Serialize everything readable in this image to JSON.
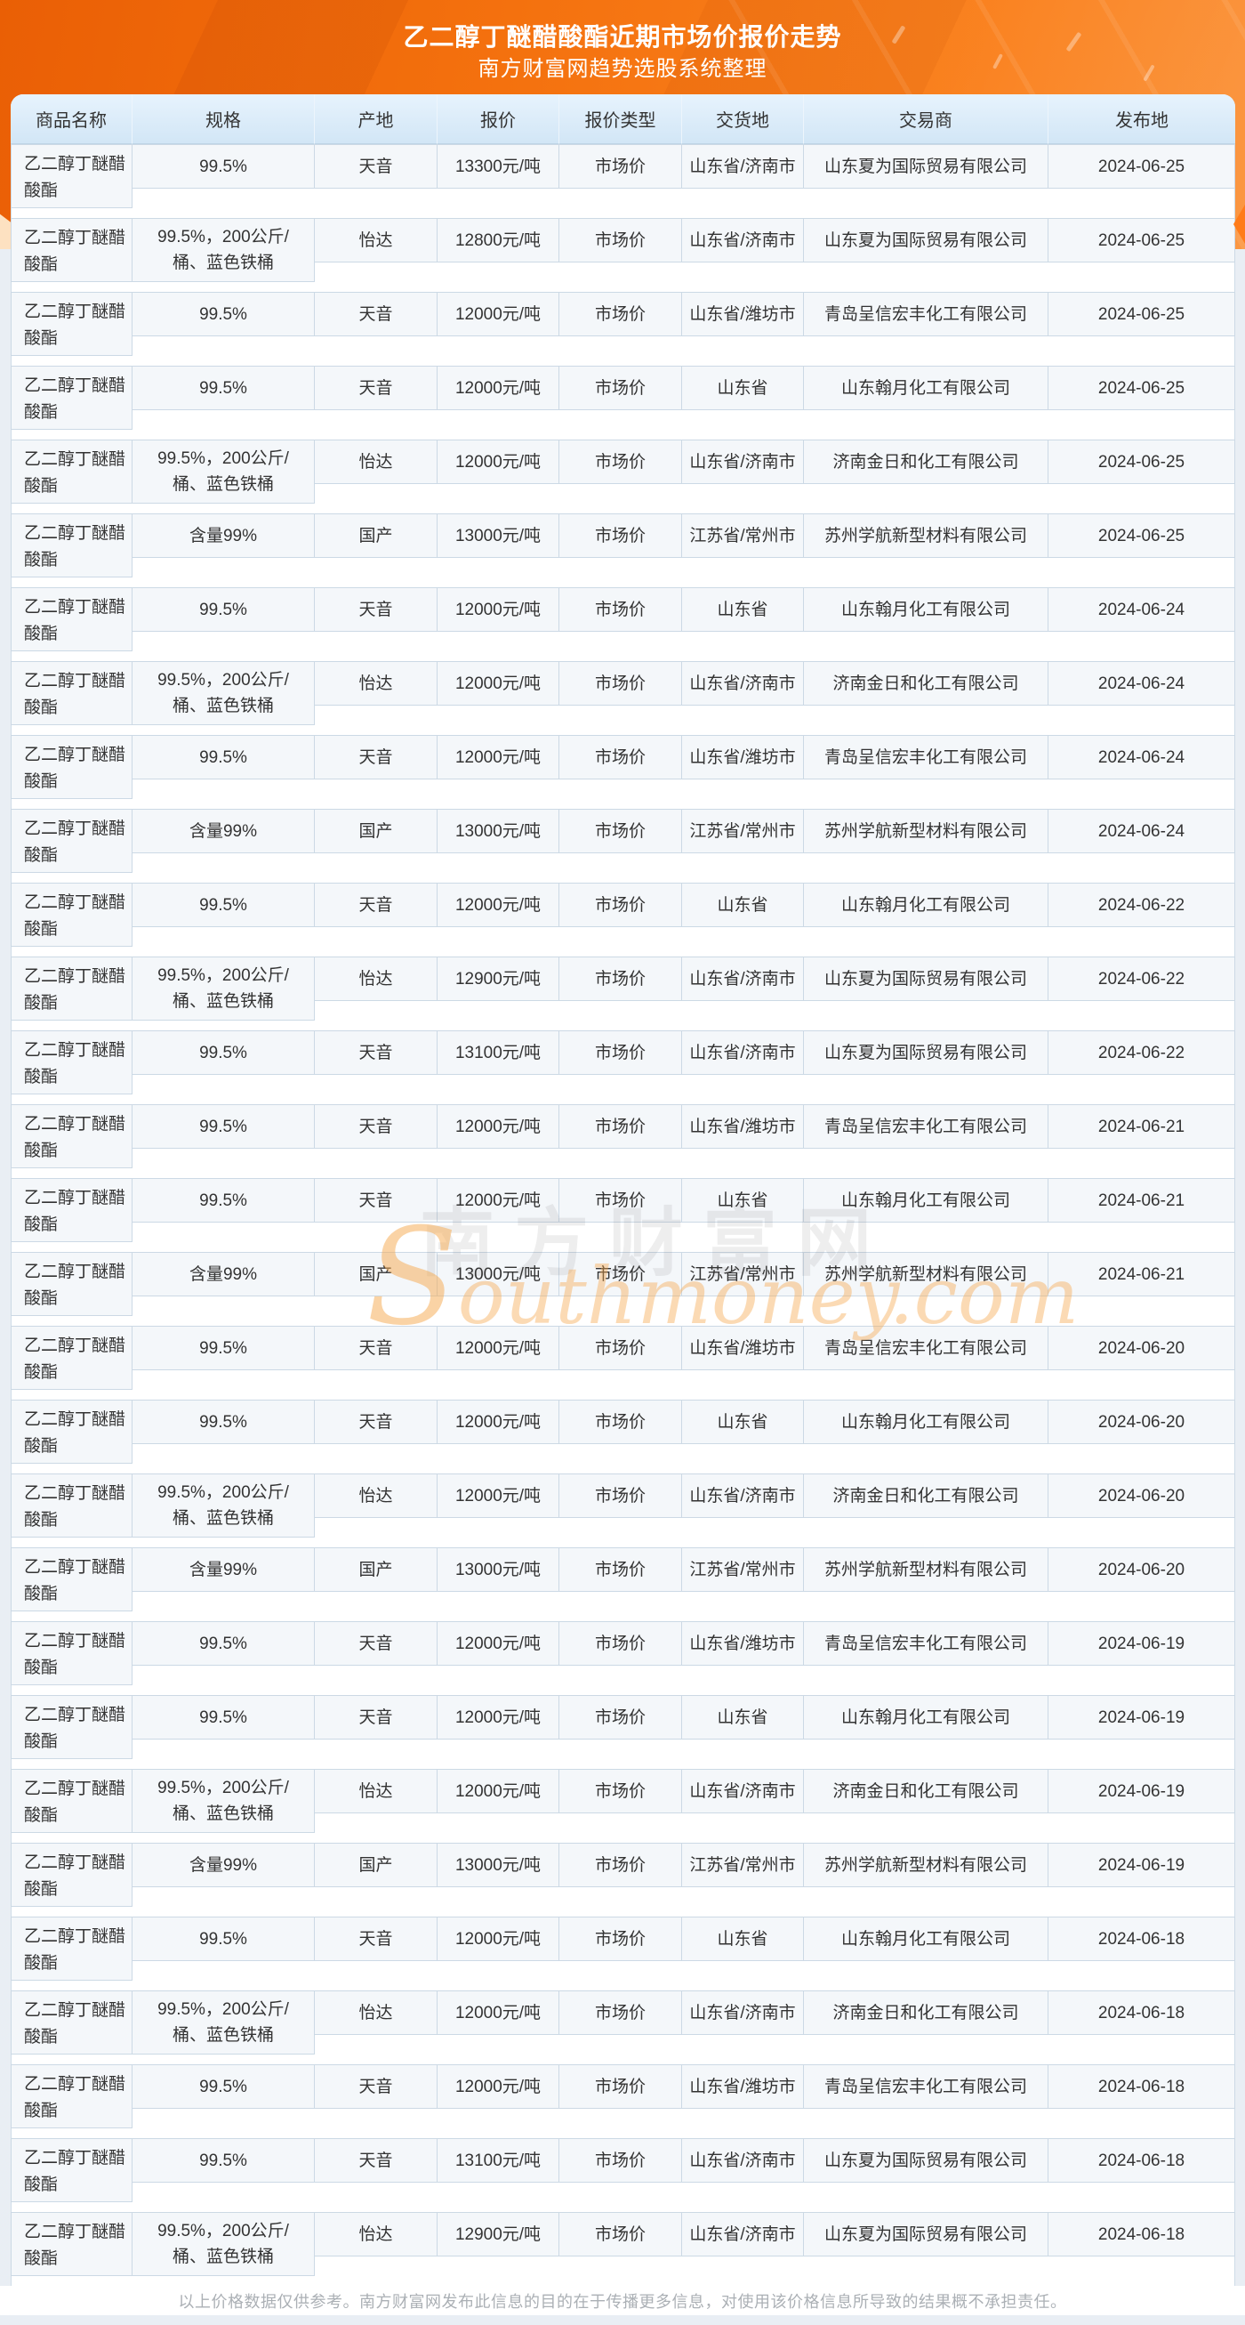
{
  "banner": {
    "title": "乙二醇丁醚醋酸酯近期市场价报价走势",
    "subtitle": "南方财富网趋势选股系统整理"
  },
  "watermark": {
    "cn": "南方财富网",
    "en_initial": "S",
    "en_rest": "outhmoney.com"
  },
  "table": {
    "headers": [
      "商品名称",
      "规格",
      "产地",
      "报价",
      "报价类型",
      "交货地",
      "交易商",
      "发布地"
    ],
    "product_name": "乙二醇丁醚醋酸酯",
    "rows": [
      {
        "spec": "99.5%",
        "origin": "天音",
        "price": "13300元/吨",
        "price_type": "市场价",
        "delivery": "山东省/济南市",
        "trader": "山东夏为国际贸易有限公司",
        "date": "2024-06-25"
      },
      {
        "spec": "99.5%，200公斤/桶、蓝色铁桶",
        "origin": "怡达",
        "price": "12800元/吨",
        "price_type": "市场价",
        "delivery": "山东省/济南市",
        "trader": "山东夏为国际贸易有限公司",
        "date": "2024-06-25"
      },
      {
        "spec": "99.5%",
        "origin": "天音",
        "price": "12000元/吨",
        "price_type": "市场价",
        "delivery": "山东省/潍坊市",
        "trader": "青岛呈信宏丰化工有限公司",
        "date": "2024-06-25"
      },
      {
        "spec": "99.5%",
        "origin": "天音",
        "price": "12000元/吨",
        "price_type": "市场价",
        "delivery": "山东省",
        "trader": "山东翰月化工有限公司",
        "date": "2024-06-25"
      },
      {
        "spec": "99.5%，200公斤/桶、蓝色铁桶",
        "origin": "怡达",
        "price": "12000元/吨",
        "price_type": "市场价",
        "delivery": "山东省/济南市",
        "trader": "济南金日和化工有限公司",
        "date": "2024-06-25"
      },
      {
        "spec": "含量99%",
        "origin": "国产",
        "price": "13000元/吨",
        "price_type": "市场价",
        "delivery": "江苏省/常州市",
        "trader": "苏州学航新型材料有限公司",
        "date": "2024-06-25"
      },
      {
        "spec": "99.5%",
        "origin": "天音",
        "price": "12000元/吨",
        "price_type": "市场价",
        "delivery": "山东省",
        "trader": "山东翰月化工有限公司",
        "date": "2024-06-24"
      },
      {
        "spec": "99.5%，200公斤/桶、蓝色铁桶",
        "origin": "怡达",
        "price": "12000元/吨",
        "price_type": "市场价",
        "delivery": "山东省/济南市",
        "trader": "济南金日和化工有限公司",
        "date": "2024-06-24"
      },
      {
        "spec": "99.5%",
        "origin": "天音",
        "price": "12000元/吨",
        "price_type": "市场价",
        "delivery": "山东省/潍坊市",
        "trader": "青岛呈信宏丰化工有限公司",
        "date": "2024-06-24"
      },
      {
        "spec": "含量99%",
        "origin": "国产",
        "price": "13000元/吨",
        "price_type": "市场价",
        "delivery": "江苏省/常州市",
        "trader": "苏州学航新型材料有限公司",
        "date": "2024-06-24"
      },
      {
        "spec": "99.5%",
        "origin": "天音",
        "price": "12000元/吨",
        "price_type": "市场价",
        "delivery": "山东省",
        "trader": "山东翰月化工有限公司",
        "date": "2024-06-22"
      },
      {
        "spec": "99.5%，200公斤/桶、蓝色铁桶",
        "origin": "怡达",
        "price": "12900元/吨",
        "price_type": "市场价",
        "delivery": "山东省/济南市",
        "trader": "山东夏为国际贸易有限公司",
        "date": "2024-06-22"
      },
      {
        "spec": "99.5%",
        "origin": "天音",
        "price": "13100元/吨",
        "price_type": "市场价",
        "delivery": "山东省/济南市",
        "trader": "山东夏为国际贸易有限公司",
        "date": "2024-06-22"
      },
      {
        "spec": "99.5%",
        "origin": "天音",
        "price": "12000元/吨",
        "price_type": "市场价",
        "delivery": "山东省/潍坊市",
        "trader": "青岛呈信宏丰化工有限公司",
        "date": "2024-06-21"
      },
      {
        "spec": "99.5%",
        "origin": "天音",
        "price": "12000元/吨",
        "price_type": "市场价",
        "delivery": "山东省",
        "trader": "山东翰月化工有限公司",
        "date": "2024-06-21"
      },
      {
        "spec": "含量99%",
        "origin": "国产",
        "price": "13000元/吨",
        "price_type": "市场价",
        "delivery": "江苏省/常州市",
        "trader": "苏州学航新型材料有限公司",
        "date": "2024-06-21"
      },
      {
        "spec": "99.5%",
        "origin": "天音",
        "price": "12000元/吨",
        "price_type": "市场价",
        "delivery": "山东省/潍坊市",
        "trader": "青岛呈信宏丰化工有限公司",
        "date": "2024-06-20"
      },
      {
        "spec": "99.5%",
        "origin": "天音",
        "price": "12000元/吨",
        "price_type": "市场价",
        "delivery": "山东省",
        "trader": "山东翰月化工有限公司",
        "date": "2024-06-20"
      },
      {
        "spec": "99.5%，200公斤/桶、蓝色铁桶",
        "origin": "怡达",
        "price": "12000元/吨",
        "price_type": "市场价",
        "delivery": "山东省/济南市",
        "trader": "济南金日和化工有限公司",
        "date": "2024-06-20"
      },
      {
        "spec": "含量99%",
        "origin": "国产",
        "price": "13000元/吨",
        "price_type": "市场价",
        "delivery": "江苏省/常州市",
        "trader": "苏州学航新型材料有限公司",
        "date": "2024-06-20"
      },
      {
        "spec": "99.5%",
        "origin": "天音",
        "price": "12000元/吨",
        "price_type": "市场价",
        "delivery": "山东省/潍坊市",
        "trader": "青岛呈信宏丰化工有限公司",
        "date": "2024-06-19"
      },
      {
        "spec": "99.5%",
        "origin": "天音",
        "price": "12000元/吨",
        "price_type": "市场价",
        "delivery": "山东省",
        "trader": "山东翰月化工有限公司",
        "date": "2024-06-19"
      },
      {
        "spec": "99.5%，200公斤/桶、蓝色铁桶",
        "origin": "怡达",
        "price": "12000元/吨",
        "price_type": "市场价",
        "delivery": "山东省/济南市",
        "trader": "济南金日和化工有限公司",
        "date": "2024-06-19"
      },
      {
        "spec": "含量99%",
        "origin": "国产",
        "price": "13000元/吨",
        "price_type": "市场价",
        "delivery": "江苏省/常州市",
        "trader": "苏州学航新型材料有限公司",
        "date": "2024-06-19"
      },
      {
        "spec": "99.5%",
        "origin": "天音",
        "price": "12000元/吨",
        "price_type": "市场价",
        "delivery": "山东省",
        "trader": "山东翰月化工有限公司",
        "date": "2024-06-18"
      },
      {
        "spec": "99.5%，200公斤/桶、蓝色铁桶",
        "origin": "怡达",
        "price": "12000元/吨",
        "price_type": "市场价",
        "delivery": "山东省/济南市",
        "trader": "济南金日和化工有限公司",
        "date": "2024-06-18"
      },
      {
        "spec": "99.5%",
        "origin": "天音",
        "price": "12000元/吨",
        "price_type": "市场价",
        "delivery": "山东省/潍坊市",
        "trader": "青岛呈信宏丰化工有限公司",
        "date": "2024-06-18"
      },
      {
        "spec": "99.5%",
        "origin": "天音",
        "price": "13100元/吨",
        "price_type": "市场价",
        "delivery": "山东省/济南市",
        "trader": "山东夏为国际贸易有限公司",
        "date": "2024-06-18"
      },
      {
        "spec": "99.5%，200公斤/桶、蓝色铁桶",
        "origin": "怡达",
        "price": "12900元/吨",
        "price_type": "市场价",
        "delivery": "山东省/济南市",
        "trader": "山东夏为国际贸易有限公司",
        "date": "2024-06-18"
      }
    ]
  },
  "footer": {
    "disclaimer": "以上价格数据仅供参考。南方财富网发布此信息的目的在于传播更多信息，对使用该价格信息所导致的结果概不承担责任。"
  },
  "colors": {
    "banner_orange": "#f4710e",
    "banner_orange_dark": "#ea5f05",
    "banner_orange_light": "#fb8c2e",
    "header_blue": "#d9eafa",
    "cell_bg": "#f4f7fa",
    "cell_border": "#ccd9e5",
    "text": "#333333",
    "footer_text": "#abb0b5",
    "page_bg": "#e9eef4",
    "watermark_orange": "#f6a84c"
  }
}
